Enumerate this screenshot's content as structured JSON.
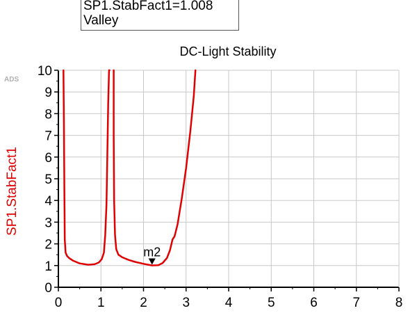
{
  "marker_readout": {
    "equation": "SP1.StabFact1=1.008",
    "note": "Valley"
  },
  "watermark": "ADS",
  "colors": {
    "trace": "#e00000",
    "axis": "#000000",
    "grid": "#c8c8c8",
    "ylabel": "#e00000"
  },
  "chart_data": {
    "type": "line",
    "title": "DC-Light Stability",
    "xlabel": "",
    "ylabel": "SP1.StabFact1",
    "xlim": [
      0,
      8
    ],
    "ylim": [
      0,
      10
    ],
    "x_ticks": [
      "0",
      "1",
      "2",
      "3",
      "4",
      "5",
      "6",
      "7",
      "8"
    ],
    "y_ticks": [
      "0",
      "1",
      "2",
      "3",
      "4",
      "5",
      "6",
      "7",
      "8",
      "9",
      "10"
    ],
    "grid": true,
    "series": [
      {
        "name": "SP1.StabFact1",
        "x": [
          0.12,
          0.13,
          0.14,
          0.15,
          0.17,
          0.2,
          0.25,
          0.35,
          0.5,
          0.7,
          0.85,
          0.95,
          1.02,
          1.07,
          1.1,
          1.13,
          1.15,
          1.17,
          1.19,
          1.2
        ],
        "y": [
          10,
          7.5,
          4.5,
          2.2,
          1.6,
          1.45,
          1.35,
          1.22,
          1.1,
          1.04,
          1.06,
          1.14,
          1.3,
          1.6,
          2.4,
          3.8,
          6.0,
          8.5,
          10,
          10
        ]
      },
      {
        "name": "SP1.StabFact1",
        "x": [
          1.3,
          1.3,
          1.31,
          1.33,
          1.36,
          1.41,
          1.5,
          1.65,
          1.8,
          2.0,
          2.2,
          2.35,
          2.45,
          2.55,
          2.62,
          2.68,
          2.73,
          2.8,
          2.9,
          3.0,
          3.1,
          3.18,
          3.22
        ],
        "y": [
          10,
          7.0,
          4.0,
          2.4,
          1.75,
          1.5,
          1.38,
          1.26,
          1.17,
          1.08,
          1.008,
          1.02,
          1.12,
          1.35,
          1.7,
          2.2,
          2.35,
          2.9,
          4.1,
          5.5,
          7.2,
          8.8,
          10
        ]
      }
    ],
    "markers": [
      {
        "label": "m2",
        "x": 2.2,
        "y": 1.008
      }
    ]
  }
}
